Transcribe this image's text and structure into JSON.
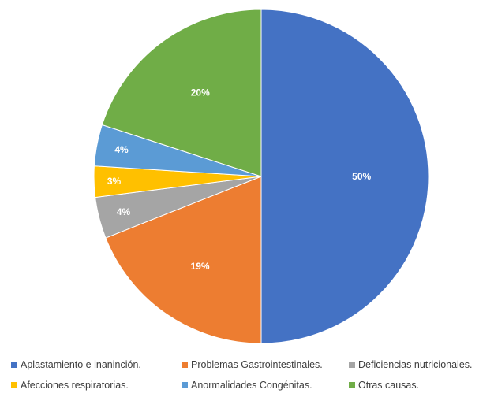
{
  "chart_data": {
    "type": "pie",
    "title": "",
    "categories": [
      "Aplastamiento e inaninción.",
      "Problemas Gastrointestinales.",
      "Deficiencias nutricionales.",
      "Afecciones respiratorias.",
      "Anormalidades Congénitas.",
      "Otras causas."
    ],
    "values": [
      50,
      19,
      4,
      3,
      4,
      20
    ],
    "labels": [
      "50%",
      "19%",
      "4%",
      "3%",
      "4%",
      "20%"
    ],
    "colors": [
      "#4472C4",
      "#ED7D31",
      "#A5A5A5",
      "#FFC000",
      "#5B9BD5",
      "#70AD47"
    ],
    "legend_position": "bottom",
    "start_angle": "top, clockwise"
  }
}
